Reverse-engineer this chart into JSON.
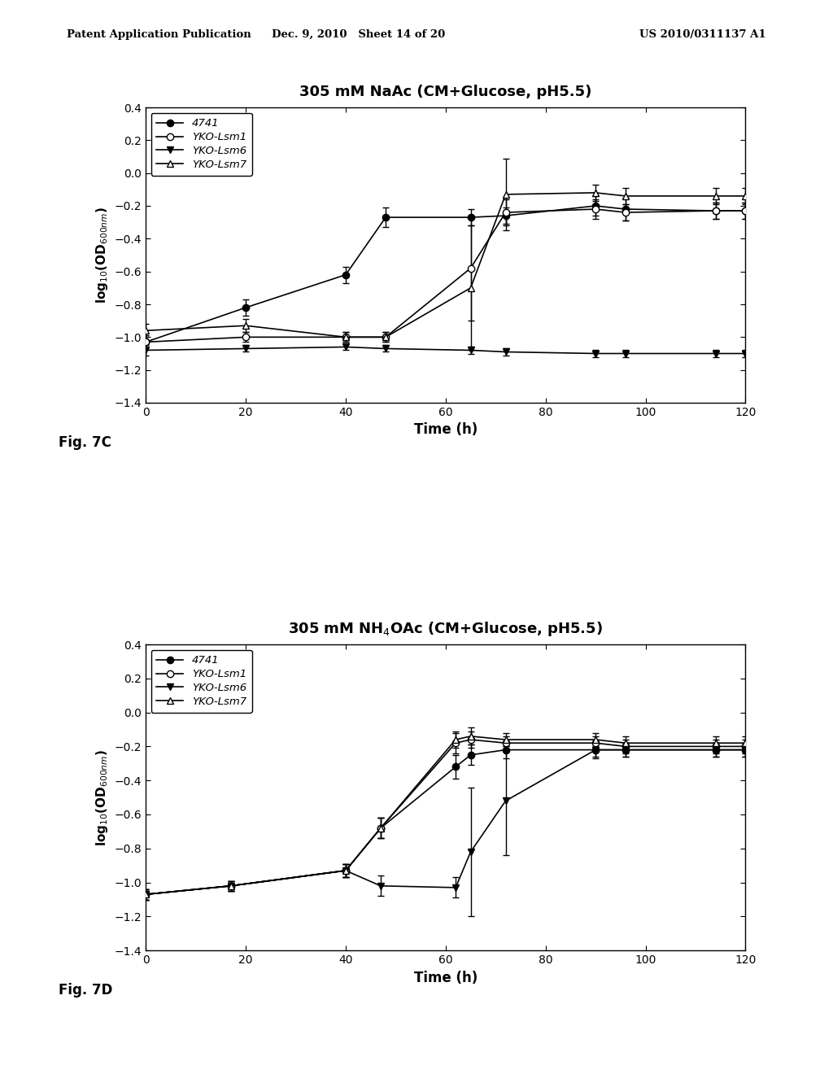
{
  "chart_c": {
    "title": "305 mM NaAc (CM+Glucose, pH5.5)",
    "fig_label": "Fig. 7C",
    "series": {
      "4741": {
        "x": [
          0,
          20,
          40,
          48,
          65,
          72,
          90,
          96,
          114,
          120
        ],
        "y": [
          -1.03,
          -0.82,
          -0.62,
          -0.27,
          -0.27,
          -0.26,
          -0.2,
          -0.22,
          -0.23,
          -0.23
        ],
        "yerr": [
          0.04,
          0.05,
          0.05,
          0.06,
          0.05,
          0.05,
          0.06,
          0.07,
          0.05,
          0.05
        ],
        "marker": "o",
        "fillstyle": "full",
        "color": "black",
        "linestyle": "-"
      },
      "YKO-Lsm1": {
        "x": [
          0,
          20,
          40,
          48,
          65,
          72,
          90,
          96,
          114,
          120
        ],
        "y": [
          -1.03,
          -1.0,
          -1.0,
          -1.0,
          -0.58,
          -0.24,
          -0.22,
          -0.24,
          -0.23,
          -0.23
        ],
        "yerr": [
          0.03,
          0.03,
          0.03,
          0.03,
          0.32,
          0.08,
          0.06,
          0.05,
          0.05,
          0.05
        ],
        "marker": "o",
        "fillstyle": "none",
        "color": "black",
        "linestyle": "-"
      },
      "YKO-Lsm6": {
        "x": [
          0,
          20,
          40,
          48,
          65,
          72,
          90,
          96,
          114,
          120
        ],
        "y": [
          -1.08,
          -1.07,
          -1.06,
          -1.07,
          -1.08,
          -1.09,
          -1.1,
          -1.1,
          -1.1,
          -1.1
        ],
        "yerr": [
          0.03,
          0.02,
          0.02,
          0.02,
          0.02,
          0.02,
          0.02,
          0.02,
          0.02,
          0.02
        ],
        "marker": "v",
        "fillstyle": "full",
        "color": "black",
        "linestyle": "-"
      },
      "YKO-Lsm7": {
        "x": [
          0,
          20,
          40,
          48,
          65,
          72,
          90,
          96,
          114,
          120
        ],
        "y": [
          -0.96,
          -0.93,
          -1.0,
          -1.0,
          -0.7,
          -0.13,
          -0.12,
          -0.14,
          -0.14,
          -0.14
        ],
        "yerr": [
          0.04,
          0.04,
          0.03,
          0.03,
          0.38,
          0.22,
          0.05,
          0.05,
          0.05,
          0.05
        ],
        "marker": "^",
        "fillstyle": "none",
        "color": "black",
        "linestyle": "-"
      }
    },
    "ylim": [
      -1.4,
      0.4
    ],
    "xlim": [
      0,
      120
    ],
    "yticks": [
      -1.4,
      -1.2,
      -1.0,
      -0.8,
      -0.6,
      -0.4,
      -0.2,
      0.0,
      0.2,
      0.4
    ],
    "xticks": [
      0,
      20,
      40,
      60,
      80,
      100,
      120
    ],
    "xlabel": "Time (h)",
    "ylabel": "log$_{10}$(OD$_{600nm}$)"
  },
  "chart_d": {
    "title": "305 mM NH$_4$OAc (CM+Glucose, pH5.5)",
    "fig_label": "Fig. 7D",
    "series": {
      "4741": {
        "x": [
          0,
          17,
          40,
          47,
          62,
          65,
          72,
          90,
          96,
          114,
          120
        ],
        "y": [
          -1.07,
          -1.02,
          -0.93,
          -0.68,
          -0.32,
          -0.25,
          -0.22,
          -0.22,
          -0.22,
          -0.22,
          -0.22
        ],
        "yerr": [
          0.03,
          0.03,
          0.04,
          0.06,
          0.07,
          0.06,
          0.05,
          0.04,
          0.04,
          0.04,
          0.04
        ],
        "marker": "o",
        "fillstyle": "full",
        "color": "black",
        "linestyle": "-"
      },
      "YKO-Lsm1": {
        "x": [
          0,
          17,
          40,
          47,
          62,
          65,
          72,
          90,
          96,
          114,
          120
        ],
        "y": [
          -1.07,
          -1.02,
          -0.93,
          -0.68,
          -0.18,
          -0.16,
          -0.18,
          -0.18,
          -0.2,
          -0.2,
          -0.2
        ],
        "yerr": [
          0.03,
          0.03,
          0.04,
          0.06,
          0.06,
          0.05,
          0.04,
          0.04,
          0.04,
          0.04,
          0.04
        ],
        "marker": "o",
        "fillstyle": "none",
        "color": "black",
        "linestyle": "-"
      },
      "YKO-Lsm6": {
        "x": [
          0,
          17,
          40,
          47,
          62,
          65,
          72,
          90,
          96,
          114,
          120
        ],
        "y": [
          -1.07,
          -1.02,
          -0.93,
          -1.02,
          -1.03,
          -0.82,
          -0.52,
          -0.22,
          -0.22,
          -0.22,
          -0.22
        ],
        "yerr": [
          0.03,
          0.03,
          0.04,
          0.06,
          0.06,
          0.38,
          0.32,
          0.05,
          0.04,
          0.04,
          0.04
        ],
        "marker": "v",
        "fillstyle": "full",
        "color": "black",
        "linestyle": "-"
      },
      "YKO-Lsm7": {
        "x": [
          0,
          17,
          40,
          47,
          62,
          65,
          72,
          90,
          96,
          114,
          120
        ],
        "y": [
          -1.07,
          -1.02,
          -0.93,
          -0.68,
          -0.16,
          -0.14,
          -0.16,
          -0.16,
          -0.18,
          -0.18,
          -0.18
        ],
        "yerr": [
          0.03,
          0.03,
          0.04,
          0.06,
          0.05,
          0.05,
          0.04,
          0.04,
          0.04,
          0.04,
          0.04
        ],
        "marker": "^",
        "fillstyle": "none",
        "color": "black",
        "linestyle": "-"
      }
    },
    "ylim": [
      -1.4,
      0.4
    ],
    "xlim": [
      0,
      120
    ],
    "yticks": [
      -1.4,
      -1.2,
      -1.0,
      -0.8,
      -0.6,
      -0.4,
      -0.2,
      0.0,
      0.2,
      0.4
    ],
    "xticks": [
      0,
      20,
      40,
      60,
      80,
      100,
      120
    ],
    "xlabel": "Time (h)",
    "ylabel": "log$_{10}$(OD$_{600nm}$)"
  },
  "header_left": "Patent Application Publication",
  "header_mid": "Dec. 9, 2010   Sheet 14 of 20",
  "header_right": "US 2010/0311137 A1",
  "background_color": "#ffffff",
  "text_color": "#000000"
}
